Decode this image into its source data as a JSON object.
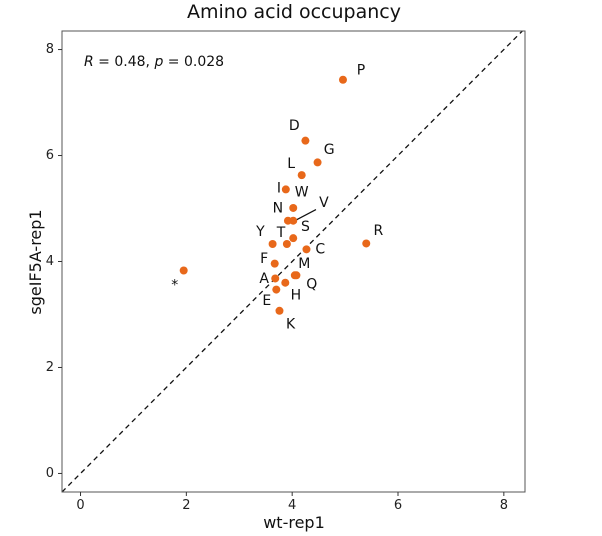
{
  "chart_data": {
    "type": "scatter",
    "title": "Amino acid occupancy",
    "xlabel": "wt-rep1",
    "ylabel": "sgeIF5A-rep1",
    "xlim": [
      -0.35,
      8.4
    ],
    "ylim": [
      -0.35,
      8.35
    ],
    "xticks": [
      0,
      2,
      4,
      6,
      8
    ],
    "yticks": [
      0,
      2,
      4,
      6,
      8
    ],
    "grid": false,
    "reference_line": {
      "style": "dashed",
      "slope": 1,
      "intercept": 0
    },
    "annotation": {
      "r_symbol": "R",
      "r_text": " = 0.48, ",
      "p_symbol": "p",
      "p_text": " = 0.028"
    },
    "point_color": "#e8681a",
    "points": [
      {
        "label": "P",
        "x": 4.96,
        "y": 7.43
      },
      {
        "label": "D",
        "x": 4.25,
        "y": 6.28
      },
      {
        "label": "G",
        "x": 4.48,
        "y": 5.87
      },
      {
        "label": "L",
        "x": 4.18,
        "y": 5.63
      },
      {
        "label": "I",
        "x": 3.88,
        "y": 5.36
      },
      {
        "label": "W",
        "x": 4.02,
        "y": 5.01
      },
      {
        "label": "N",
        "x": 3.92,
        "y": 4.77
      },
      {
        "label": "V",
        "x": 4.02,
        "y": 4.77
      },
      {
        "label": "S",
        "x": 4.02,
        "y": 4.44
      },
      {
        "label": "T",
        "x": 3.9,
        "y": 4.33
      },
      {
        "label": "Y",
        "x": 3.63,
        "y": 4.33
      },
      {
        "label": "R",
        "x": 5.4,
        "y": 4.34
      },
      {
        "label": "C",
        "x": 4.27,
        "y": 4.23
      },
      {
        "label": "F",
        "x": 3.67,
        "y": 3.96
      },
      {
        "label": "M",
        "x": 4.05,
        "y": 3.74
      },
      {
        "label": "Q",
        "x": 4.08,
        "y": 3.74
      },
      {
        "label": "A",
        "x": 3.68,
        "y": 3.68
      },
      {
        "label": "H",
        "x": 3.87,
        "y": 3.6
      },
      {
        "label": "E",
        "x": 3.7,
        "y": 3.47
      },
      {
        "label": "K",
        "x": 3.76,
        "y": 3.07
      },
      {
        "label": "*",
        "x": 1.95,
        "y": 3.83
      }
    ],
    "label_positions": {
      "P": {
        "x": 5.3,
        "y": 7.6
      },
      "D": {
        "x": 4.04,
        "y": 6.56
      },
      "G": {
        "x": 4.7,
        "y": 6.1
      },
      "L": {
        "x": 3.98,
        "y": 5.84
      },
      "I": {
        "x": 3.75,
        "y": 5.38
      },
      "W": {
        "x": 4.18,
        "y": 5.3
      },
      "N": {
        "x": 3.73,
        "y": 5.0
      },
      "V": {
        "x": 4.6,
        "y": 5.1
      },
      "S": {
        "x": 4.25,
        "y": 4.65
      },
      "T": {
        "x": 3.79,
        "y": 4.54
      },
      "Y": {
        "x": 3.4,
        "y": 4.56
      },
      "R": {
        "x": 5.63,
        "y": 4.58
      },
      "C": {
        "x": 4.53,
        "y": 4.23
      },
      "F": {
        "x": 3.47,
        "y": 4.05
      },
      "M": {
        "x": 4.23,
        "y": 3.95
      },
      "Q": {
        "x": 4.37,
        "y": 3.57
      },
      "A": {
        "x": 3.47,
        "y": 3.67
      },
      "H": {
        "x": 4.07,
        "y": 3.36
      },
      "E": {
        "x": 3.52,
        "y": 3.25
      },
      "K": {
        "x": 3.97,
        "y": 2.81
      },
      "*": {
        "x": 1.78,
        "y": 3.55
      }
    },
    "leader_lines": [
      {
        "label": "V",
        "from": {
          "x": 4.05,
          "y": 4.77
        },
        "to": {
          "x": 4.45,
          "y": 4.98
        }
      }
    ]
  }
}
